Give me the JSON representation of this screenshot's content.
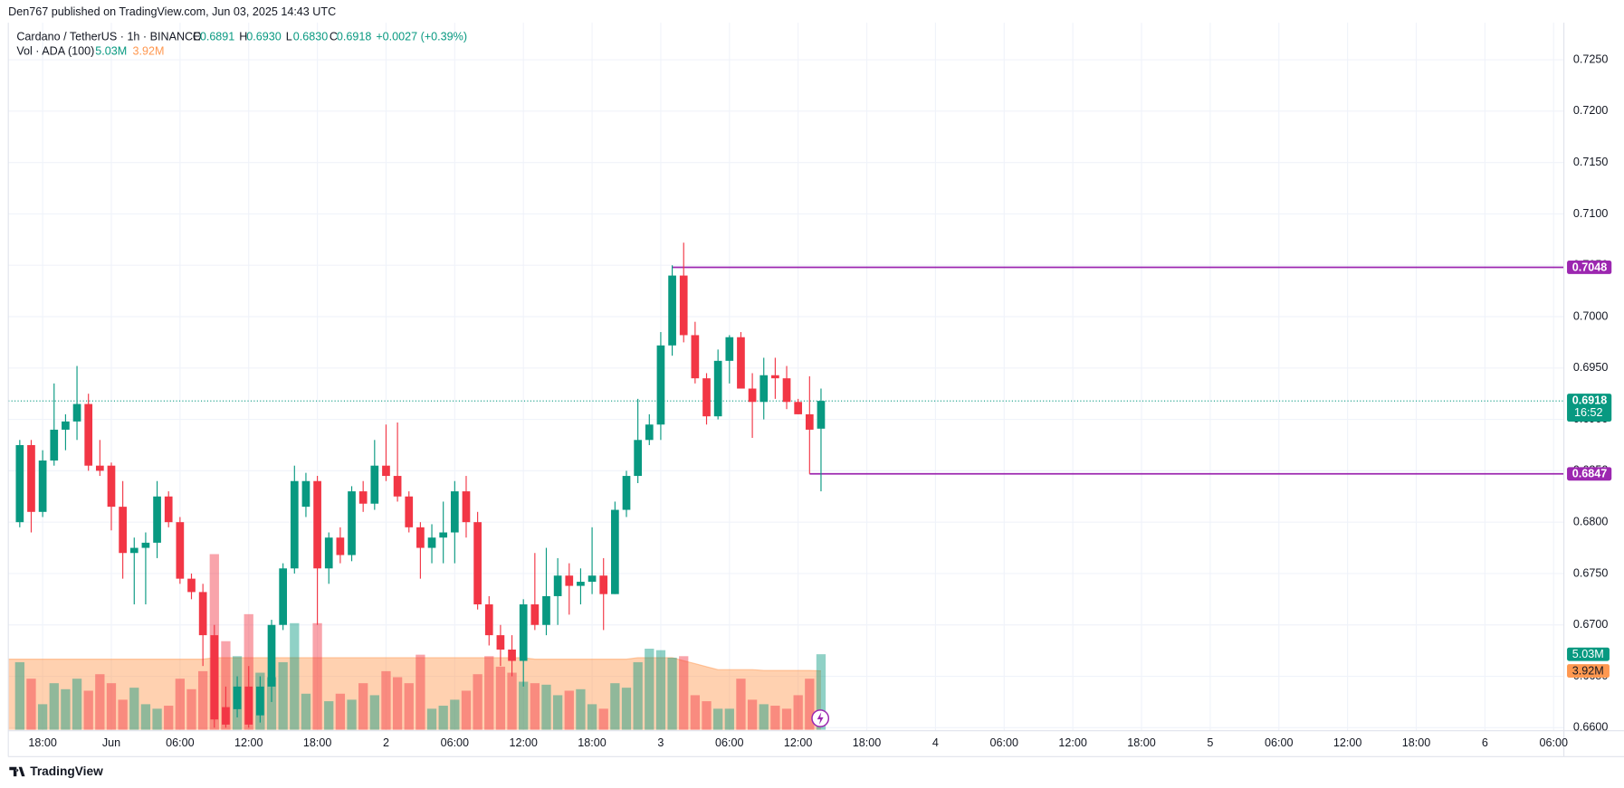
{
  "header": {
    "published": "Den767 published on TradingView.com, Jun 03, 2025 14:43 UTC",
    "symbol": "Cardano / TetherUS · 1h · BINANCE",
    "ohlc": [
      {
        "key": "O",
        "value": "0.6891"
      },
      {
        "key": "H",
        "value": "0.6930"
      },
      {
        "key": "L",
        "value": "0.6830"
      },
      {
        "key": "C",
        "value": "0.6918"
      }
    ],
    "change": "+0.0027 (+0.39%)",
    "volume_legend": "Vol · ADA (100)",
    "countdown": "16:52",
    "brand": "TradingView"
  },
  "chart_data": {
    "type": "candlestick",
    "up_color": "#089981",
    "down_color": "#f23645",
    "open": [
      0.68,
      0.6875,
      0.681,
      0.686,
      0.689,
      0.6898,
      0.6915,
      0.6855,
      0.6855,
      0.6815,
      0.677,
      0.6775,
      0.678,
      0.6825,
      0.68,
      0.6745,
      0.6732,
      0.669,
      0.662,
      0.6618,
      0.664,
      0.6612,
      0.664,
      0.67,
      0.6755,
      0.6815,
      0.684,
      0.6755,
      0.6785,
      0.6768,
      0.683,
      0.6818,
      0.6855,
      0.6845,
      0.6825,
      0.6795,
      0.6775,
      0.6785,
      0.679,
      0.683,
      0.68,
      0.672,
      0.669,
      0.6676,
      0.6665,
      0.672,
      0.67,
      0.6728,
      0.6748,
      0.6738,
      0.6742,
      0.6748,
      0.673,
      0.6812,
      0.6845,
      0.688,
      0.6895,
      0.6972,
      0.704,
      0.6982,
      0.694,
      0.6903,
      0.6957,
      0.698,
      0.693,
      0.6917,
      0.6943,
      0.694,
      0.6917,
      0.6905,
      0.6891
    ],
    "high": [
      0.688,
      0.688,
      0.687,
      0.6935,
      0.6905,
      0.6952,
      0.6925,
      0.688,
      0.6858,
      0.684,
      0.6785,
      0.679,
      0.684,
      0.683,
      0.6805,
      0.675,
      0.674,
      0.67,
      0.664,
      0.665,
      0.666,
      0.665,
      0.6705,
      0.676,
      0.6855,
      0.6848,
      0.6845,
      0.679,
      0.6795,
      0.6835,
      0.684,
      0.688,
      0.6895,
      0.6897,
      0.683,
      0.68,
      0.6798,
      0.682,
      0.684,
      0.6845,
      0.681,
      0.6728,
      0.67,
      0.669,
      0.6725,
      0.677,
      0.6775,
      0.6765,
      0.676,
      0.6755,
      0.6795,
      0.6765,
      0.682,
      0.685,
      0.692,
      0.6905,
      0.6985,
      0.705,
      0.7072,
      0.6995,
      0.6945,
      0.6968,
      0.6982,
      0.6985,
      0.6945,
      0.696,
      0.696,
      0.6952,
      0.692,
      0.6942,
      0.693
    ],
    "low": [
      0.6795,
      0.679,
      0.6805,
      0.6855,
      0.687,
      0.688,
      0.685,
      0.6845,
      0.6792,
      0.6745,
      0.672,
      0.672,
      0.6765,
      0.6795,
      0.674,
      0.6725,
      0.666,
      0.66,
      0.66,
      0.661,
      0.66,
      0.6605,
      0.6625,
      0.6695,
      0.675,
      0.6805,
      0.67,
      0.674,
      0.676,
      0.6762,
      0.681,
      0.6812,
      0.684,
      0.682,
      0.679,
      0.6745,
      0.676,
      0.676,
      0.676,
      0.6785,
      0.6715,
      0.668,
      0.666,
      0.665,
      0.664,
      0.6695,
      0.669,
      0.67,
      0.671,
      0.672,
      0.673,
      0.6695,
      0.673,
      0.6805,
      0.6838,
      0.6875,
      0.688,
      0.6962,
      0.6975,
      0.6935,
      0.6895,
      0.69,
      0.6935,
      0.693,
      0.6882,
      0.69,
      0.692,
      0.691,
      0.6905,
      0.6847,
      0.683
    ],
    "close": [
      0.6875,
      0.681,
      0.686,
      0.689,
      0.6898,
      0.6915,
      0.6855,
      0.685,
      0.6815,
      0.677,
      0.6775,
      0.678,
      0.6825,
      0.68,
      0.6745,
      0.6732,
      0.669,
      0.6608,
      0.6603,
      0.664,
      0.6603,
      0.664,
      0.67,
      0.6755,
      0.684,
      0.684,
      0.6755,
      0.6785,
      0.6768,
      0.683,
      0.6818,
      0.6855,
      0.6845,
      0.6825,
      0.6795,
      0.6775,
      0.6785,
      0.679,
      0.683,
      0.68,
      0.672,
      0.669,
      0.6676,
      0.6665,
      0.672,
      0.67,
      0.6728,
      0.6748,
      0.6738,
      0.6742,
      0.6748,
      0.673,
      0.6812,
      0.6845,
      0.688,
      0.6895,
      0.6972,
      0.704,
      0.6982,
      0.694,
      0.6903,
      0.6957,
      0.698,
      0.693,
      0.6917,
      0.6943,
      0.694,
      0.6917,
      0.6905,
      0.689,
      0.6918
    ],
    "volume": [
      4.5,
      3.4,
      1.7,
      3.1,
      2.7,
      3.4,
      2.6,
      3.7,
      3.1,
      2.0,
      2.8,
      1.7,
      1.4,
      1.6,
      3.4,
      2.7,
      3.9,
      11.7,
      5.9,
      4.9,
      7.7,
      3.8,
      3.5,
      4.5,
      7.1,
      2.4,
      7.1,
      1.9,
      2.4,
      2.0,
      3.1,
      2.3,
      3.9,
      3.5,
      3.1,
      5.0,
      1.4,
      1.6,
      2.0,
      2.6,
      3.7,
      4.9,
      4.2,
      3.8,
      3.2,
      3.1,
      3.0,
      2.3,
      2.6,
      2.7,
      1.7,
      1.4,
      3.1,
      2.8,
      4.5,
      5.4,
      5.3,
      4.8,
      4.9,
      2.3,
      1.9,
      1.4,
      1.4,
      3.4,
      2.0,
      1.7,
      1.6,
      1.4,
      2.3,
      3.4,
      5.03
    ],
    "volume_ma": [
      4.7,
      4.7,
      4.7,
      4.7,
      4.7,
      4.7,
      4.7,
      4.7,
      4.7,
      4.7,
      4.7,
      4.7,
      4.7,
      4.7,
      4.7,
      4.7,
      4.7,
      4.8,
      4.8,
      4.8,
      4.8,
      4.8,
      4.8,
      4.8,
      4.8,
      4.8,
      4.8,
      4.8,
      4.8,
      4.8,
      4.8,
      4.8,
      4.8,
      4.8,
      4.8,
      4.8,
      4.8,
      4.8,
      4.8,
      4.8,
      4.8,
      4.8,
      4.8,
      4.8,
      4.8,
      4.7,
      4.7,
      4.7,
      4.7,
      4.7,
      4.7,
      4.7,
      4.7,
      4.7,
      4.8,
      4.8,
      4.8,
      4.8,
      4.6,
      4.4,
      4.2,
      4.0,
      4.0,
      4.0,
      4.0,
      3.95,
      3.95,
      3.95,
      3.95,
      3.95,
      3.92
    ],
    "volume_last_label": "5.03M",
    "volume_ma_last_label": "3.92M",
    "volume_ma_color": "#ff9850",
    "ylim": [
      0.6597,
      0.7286
    ],
    "yticks": [
      {
        "value": 0.66,
        "label": "0.6600"
      },
      {
        "value": 0.665,
        "label": "0.6650"
      },
      {
        "value": 0.67,
        "label": "0.6700"
      },
      {
        "value": 0.675,
        "label": "0.6750"
      },
      {
        "value": 0.68,
        "label": "0.6800"
      },
      {
        "value": 0.685,
        "label": "0.6850"
      },
      {
        "value": 0.69,
        "label": "0.6900"
      },
      {
        "value": 0.695,
        "label": "0.6950"
      },
      {
        "value": 0.7,
        "label": "0.7000"
      },
      {
        "value": 0.705,
        "label": "0.7050"
      },
      {
        "value": 0.71,
        "label": "0.7100"
      },
      {
        "value": 0.715,
        "label": "0.7150"
      },
      {
        "value": 0.72,
        "label": "0.7200"
      },
      {
        "value": 0.725,
        "label": "0.7250"
      }
    ],
    "xlim": [
      -1,
      134.9
    ],
    "xticks": [
      {
        "value": 2,
        "label": "18:00"
      },
      {
        "value": 8,
        "label": "Jun"
      },
      {
        "value": 14,
        "label": "06:00"
      },
      {
        "value": 20,
        "label": "12:00"
      },
      {
        "value": 26,
        "label": "18:00"
      },
      {
        "value": 32,
        "label": "2"
      },
      {
        "value": 38,
        "label": "06:00"
      },
      {
        "value": 44,
        "label": "12:00"
      },
      {
        "value": 50,
        "label": "18:00"
      },
      {
        "value": 56,
        "label": "3"
      },
      {
        "value": 62,
        "label": "06:00"
      },
      {
        "value": 68,
        "label": "12:00"
      },
      {
        "value": 74,
        "label": "18:00"
      },
      {
        "value": 80,
        "label": "4"
      },
      {
        "value": 86,
        "label": "06:00"
      },
      {
        "value": 92,
        "label": "12:00"
      },
      {
        "value": 98,
        "label": "18:00"
      },
      {
        "value": 104,
        "label": "5"
      },
      {
        "value": 110,
        "label": "06:00"
      },
      {
        "value": 116,
        "label": "12:00"
      },
      {
        "value": 122,
        "label": "18:00"
      },
      {
        "value": 128,
        "label": "6"
      },
      {
        "value": 134,
        "label": "06:00"
      }
    ],
    "grid": true,
    "levels": [
      {
        "value": 0.7048,
        "label": "0.7048",
        "start": 57
      },
      {
        "value": 0.6847,
        "label": "0.6847",
        "start": 69
      }
    ],
    "level_color": "#9c27b0",
    "last_price": 0.6918
  }
}
